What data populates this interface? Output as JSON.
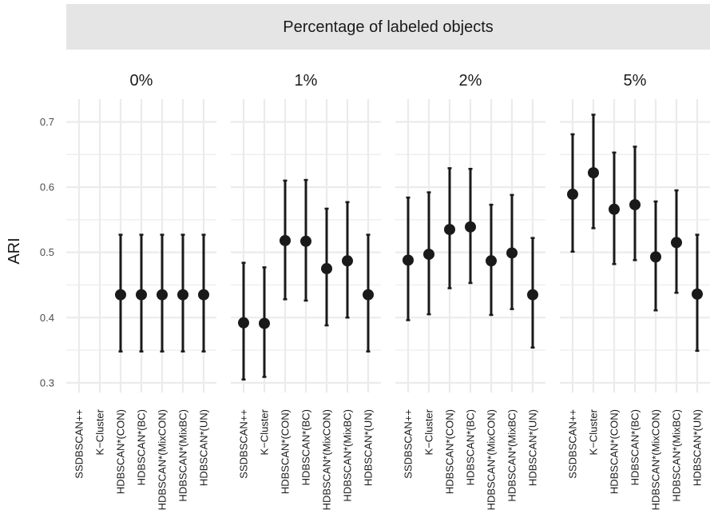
{
  "chart_data": {
    "type": "errorbar",
    "strip_title": "Percentage of labeled objects",
    "ylabel": "ARI",
    "xlabel": "",
    "ylim": [
      0.29,
      0.73
    ],
    "yticks": [
      "0.3",
      "0.4",
      "0.5",
      "0.6",
      "0.7"
    ],
    "ytick_values": [
      0.3,
      0.4,
      0.5,
      0.6,
      0.7
    ],
    "categories": [
      "SSDBSCAN++",
      "K−Cluster",
      "HDBSCAN*(CON)",
      "HDBSCAN*(BC)",
      "HDBSCAN*(MixCON)",
      "HDBSCAN*(MixBC)",
      "HDBSCAN*(UN)"
    ],
    "grid": true,
    "panels": [
      {
        "title": "0%",
        "points": [
          null,
          null,
          {
            "y": 0.435,
            "lo": 0.348,
            "hi": 0.527
          },
          {
            "y": 0.435,
            "lo": 0.348,
            "hi": 0.527
          },
          {
            "y": 0.435,
            "lo": 0.348,
            "hi": 0.527
          },
          {
            "y": 0.435,
            "lo": 0.348,
            "hi": 0.527
          },
          {
            "y": 0.435,
            "lo": 0.348,
            "hi": 0.527
          }
        ]
      },
      {
        "title": "1%",
        "points": [
          {
            "y": 0.392,
            "lo": 0.305,
            "hi": 0.484
          },
          {
            "y": 0.391,
            "lo": 0.309,
            "hi": 0.477
          },
          {
            "y": 0.518,
            "lo": 0.428,
            "hi": 0.61
          },
          {
            "y": 0.517,
            "lo": 0.426,
            "hi": 0.611
          },
          {
            "y": 0.475,
            "lo": 0.388,
            "hi": 0.567
          },
          {
            "y": 0.487,
            "lo": 0.4,
            "hi": 0.577
          },
          {
            "y": 0.435,
            "lo": 0.348,
            "hi": 0.527
          }
        ]
      },
      {
        "title": "2%",
        "points": [
          {
            "y": 0.488,
            "lo": 0.396,
            "hi": 0.584
          },
          {
            "y": 0.497,
            "lo": 0.405,
            "hi": 0.592
          },
          {
            "y": 0.535,
            "lo": 0.445,
            "hi": 0.629
          },
          {
            "y": 0.539,
            "lo": 0.453,
            "hi": 0.628
          },
          {
            "y": 0.487,
            "lo": 0.404,
            "hi": 0.573
          },
          {
            "y": 0.499,
            "lo": 0.413,
            "hi": 0.588
          },
          {
            "y": 0.435,
            "lo": 0.354,
            "hi": 0.522
          }
        ]
      },
      {
        "title": "5%",
        "points": [
          {
            "y": 0.589,
            "lo": 0.501,
            "hi": 0.681
          },
          {
            "y": 0.622,
            "lo": 0.537,
            "hi": 0.711
          },
          {
            "y": 0.566,
            "lo": 0.482,
            "hi": 0.653
          },
          {
            "y": 0.573,
            "lo": 0.488,
            "hi": 0.662
          },
          {
            "y": 0.493,
            "lo": 0.411,
            "hi": 0.578
          },
          {
            "y": 0.515,
            "lo": 0.438,
            "hi": 0.595
          },
          {
            "y": 0.436,
            "lo": 0.349,
            "hi": 0.527
          }
        ]
      }
    ],
    "colors": {
      "strip_bg": "#e5e5e5",
      "grid": "#ebebeb",
      "mark": "#1a1a1a"
    }
  }
}
